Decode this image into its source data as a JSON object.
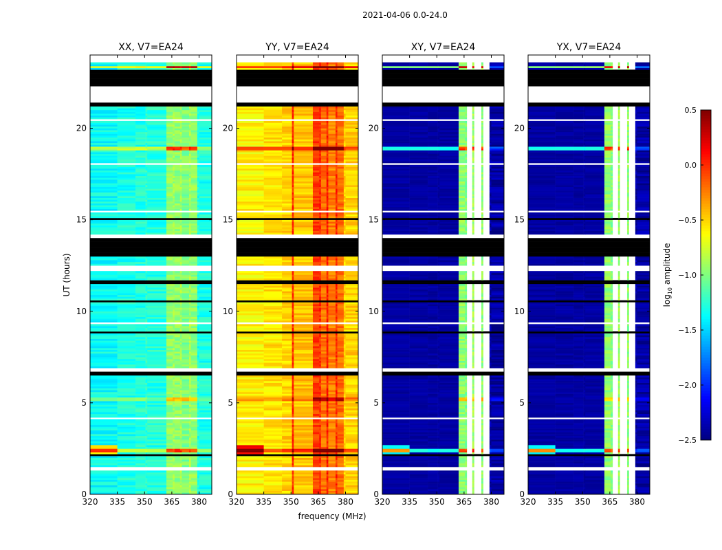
{
  "chart_data": {
    "type": "heatmap",
    "title": "2021-04-06 0.0-24.0",
    "xlabel": "frequency (MHz)",
    "ylabel": "UT (hours)",
    "xlim": [
      320,
      387
    ],
    "ylim": [
      0,
      24
    ],
    "xticks": [
      "320",
      "335",
      "350",
      "365",
      "380"
    ],
    "xtick_values": [
      320,
      335,
      350,
      365,
      380
    ],
    "yticks": [
      "0",
      "5",
      "10",
      "15",
      "20"
    ],
    "ytick_values": [
      0,
      5,
      10,
      15,
      20
    ],
    "freq_edges": [
      320,
      335,
      345,
      350.5,
      351.5,
      362,
      365.5,
      366.5,
      369.5,
      370.5,
      374.5,
      375.5,
      379,
      380,
      387
    ],
    "panels": [
      {
        "title": "XX, V7=EA24",
        "segment_values": [
          -1.35,
          -1.3,
          -1.28,
          -1.25,
          -1.28,
          -0.95,
          -0.9,
          -0.95,
          -0.9,
          -1.0,
          -0.9,
          -0.95,
          -1.3,
          -1.3
        ]
      },
      {
        "title": "YY, V7=EA24",
        "segment_values": [
          -0.6,
          -0.55,
          -0.5,
          0.0,
          -0.45,
          -0.05,
          0.0,
          -0.2,
          0.05,
          -0.25,
          0.0,
          -0.2,
          -0.5,
          -0.5
        ]
      },
      {
        "title": "XY, V7=EA24",
        "segment_values": [
          -2.4,
          -2.35,
          -2.4,
          -2.3,
          -2.4,
          -0.95,
          -1.0,
          "nan",
          -0.9,
          "nan",
          -0.95,
          "nan",
          -2.4,
          -2.4
        ]
      },
      {
        "title": "YX, V7=EA24",
        "segment_values": [
          -2.4,
          -2.35,
          -2.4,
          -2.3,
          -2.4,
          -0.95,
          -1.0,
          "nan",
          -0.9,
          "nan",
          -0.95,
          "nan",
          -2.4,
          -2.4
        ]
      }
    ],
    "no_data_hours": [
      [
        23.6,
        24
      ],
      [
        21.45,
        22.3
      ],
      [
        14.05,
        14.2
      ],
      [
        12.2,
        12.55
      ],
      [
        9.3,
        9.45
      ],
      [
        6.75,
        6.95
      ],
      [
        4.1,
        4.2
      ],
      [
        1.35,
        1.5
      ],
      [
        0.4,
        0.45
      ],
      [
        15.4,
        15.5
      ],
      [
        18.0,
        18.1
      ],
      [
        20.4,
        20.5
      ]
    ],
    "flagged_black_hours": [
      [
        22.3,
        23.2
      ],
      [
        21.2,
        21.45
      ],
      [
        15.0,
        15.1
      ],
      [
        13.0,
        14.0
      ],
      [
        11.5,
        11.7
      ],
      [
        10.5,
        10.6
      ],
      [
        8.8,
        8.9
      ],
      [
        6.5,
        6.7
      ],
      [
        5.5,
        5.55
      ],
      [
        4.6,
        4.65
      ],
      [
        3.0,
        3.05
      ],
      [
        2.1,
        2.2
      ],
      [
        1.8,
        1.85
      ],
      [
        16.6,
        16.65
      ],
      [
        19.3,
        19.35
      ],
      [
        20.8,
        20.85
      ]
    ],
    "hot_rows": [
      {
        "hour": 23.35,
        "delta": 1.2
      },
      {
        "hour": 18.9,
        "delta": 0.9
      },
      {
        "hour": 15.05,
        "delta": 0.8
      },
      {
        "hour": 5.2,
        "delta": 0.5
      },
      {
        "hour": 2.4,
        "delta": 0.9
      }
    ],
    "colorbar": {
      "label_main": "log",
      "label_sub": "10",
      "label_rest": " amplitude",
      "range": [
        -2.5,
        0.5
      ],
      "ticks": [
        "0.5",
        "0.0",
        "−0.5",
        "−1.0",
        "−1.5",
        "−2.0",
        "−2.5"
      ],
      "tick_values": [
        0.5,
        0.0,
        -0.5,
        -1.0,
        -1.5,
        -2.0,
        -2.5
      ],
      "colormap": "jet"
    }
  }
}
